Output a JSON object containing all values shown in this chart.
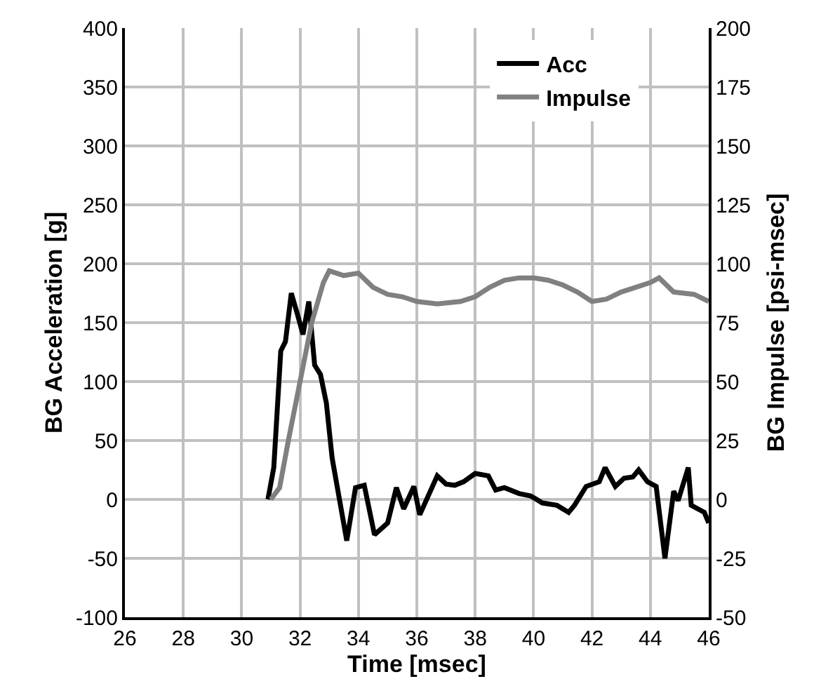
{
  "chart_data": {
    "type": "line",
    "xlabel": "Time [msec]",
    "ylabel": "BG Acceleration [g]",
    "y2label": "BG Impulse [psi-msec]",
    "xlim": [
      26,
      46
    ],
    "xticks": [
      26,
      28,
      30,
      32,
      34,
      36,
      38,
      40,
      42,
      44,
      46
    ],
    "ylim": [
      -100,
      400
    ],
    "yticks": [
      -100,
      -50,
      0,
      50,
      100,
      150,
      200,
      250,
      300,
      350,
      400
    ],
    "y2lim": [
      -50,
      200
    ],
    "y2ticks": [
      -50,
      -25,
      0,
      25,
      50,
      75,
      100,
      125,
      150,
      175,
      200
    ],
    "grid": true,
    "legend": "top right",
    "marker": "none",
    "line_style": "solid",
    "series": [
      {
        "name": "Acc",
        "color": "#000000",
        "x": [
          30.9,
          31.1,
          31.34,
          31.5,
          31.7,
          31.9,
          32.1,
          32.3,
          32.5,
          32.7,
          32.9,
          33.1,
          33.6,
          33.9,
          34.2,
          34.55,
          35.0,
          35.3,
          35.55,
          35.9,
          36.1,
          36.7,
          37.0,
          37.3,
          37.6,
          38.0,
          38.45,
          38.7,
          39.0,
          39.5,
          39.9,
          40.3,
          40.8,
          41.2,
          41.4,
          41.8,
          42.25,
          42.45,
          42.8,
          43.1,
          43.4,
          43.6,
          43.9,
          44.2,
          44.5,
          44.8,
          44.95,
          45.3,
          45.4,
          45.85,
          46.0
        ],
        "values": [
          0,
          27,
          126,
          134,
          175,
          158,
          140,
          168,
          114,
          106,
          82,
          35,
          -35,
          10,
          12,
          -30,
          -20,
          10,
          -8,
          11,
          -13,
          20,
          13,
          12,
          15,
          22,
          20,
          8,
          10,
          5,
          3,
          -3,
          -5,
          -11,
          -5,
          11,
          15,
          27,
          11,
          18,
          19,
          25,
          15,
          11,
          -50,
          7,
          -1,
          27,
          -5,
          -11,
          -20
        ]
      },
      {
        "name": "Impulse",
        "color": "#808080",
        "axis": "y2",
        "x": [
          31.0,
          31.3,
          31.6,
          32.0,
          32.4,
          32.8,
          33.0,
          33.5,
          34.0,
          34.5,
          35.0,
          35.5,
          36.0,
          36.7,
          37.5,
          38.0,
          38.5,
          39.0,
          39.5,
          40.0,
          40.5,
          41.0,
          41.5,
          42.0,
          42.5,
          43.0,
          43.5,
          44.0,
          44.3,
          44.8,
          45.5,
          46.0
        ],
        "values": [
          0,
          5,
          25,
          50,
          75,
          92,
          97,
          95,
          96,
          90,
          87,
          86,
          84,
          83,
          84,
          86,
          90,
          93,
          94,
          94,
          93,
          91,
          88,
          84,
          85,
          88,
          90,
          92,
          94,
          88,
          87,
          84
        ]
      }
    ]
  }
}
